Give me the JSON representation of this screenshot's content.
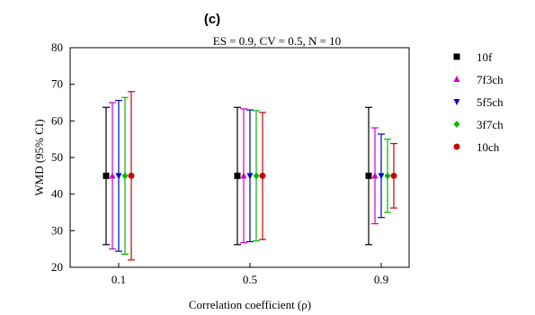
{
  "chart_data": {
    "type": "error-bar",
    "panel_label": "(c)",
    "subtitle": "ES = 0.9, CV = 0.5, N = 10",
    "xlabel": "Correlation coefficient (ρ)",
    "ylabel": "WMD (95% CI)",
    "categories": [
      "0.1",
      "0.5",
      "0.9"
    ],
    "ylim": [
      20,
      80
    ],
    "yticks": [
      20,
      30,
      40,
      50,
      60,
      70,
      80
    ],
    "grid": false,
    "legend_position": "right",
    "series": [
      {
        "name": "10f",
        "color": "#000000",
        "marker": "square",
        "points": [
          {
            "x": "0.1",
            "mean": 45.0,
            "low": 26.2,
            "high": 63.7
          },
          {
            "x": "0.5",
            "mean": 45.0,
            "low": 26.2,
            "high": 63.7
          },
          {
            "x": "0.9",
            "mean": 45.0,
            "low": 26.2,
            "high": 63.7
          }
        ]
      },
      {
        "name": "7f3ch",
        "color": "#cc00cc",
        "marker": "triangle-up",
        "points": [
          {
            "x": "0.1",
            "mean": 45.0,
            "low": 25.0,
            "high": 65.0
          },
          {
            "x": "0.5",
            "mean": 45.0,
            "low": 26.7,
            "high": 63.3
          },
          {
            "x": "0.9",
            "mean": 45.0,
            "low": 31.9,
            "high": 58.1
          }
        ]
      },
      {
        "name": "5f5ch",
        "color": "#0000cc",
        "marker": "triangle-down",
        "points": [
          {
            "x": "0.1",
            "mean": 45.0,
            "low": 24.4,
            "high": 65.6
          },
          {
            "x": "0.5",
            "mean": 45.0,
            "low": 27.0,
            "high": 63.0
          },
          {
            "x": "0.9",
            "mean": 45.0,
            "low": 33.6,
            "high": 56.4
          }
        ]
      },
      {
        "name": "3f7ch",
        "color": "#00bb00",
        "marker": "diamond",
        "points": [
          {
            "x": "0.1",
            "mean": 45.0,
            "low": 23.6,
            "high": 66.4
          },
          {
            "x": "0.5",
            "mean": 45.0,
            "low": 27.2,
            "high": 62.8
          },
          {
            "x": "0.9",
            "mean": 45.0,
            "low": 35.0,
            "high": 55.0
          }
        ]
      },
      {
        "name": "10ch",
        "color": "#cc0000",
        "marker": "circle",
        "points": [
          {
            "x": "0.1",
            "mean": 45.0,
            "low": 22.0,
            "high": 68.0
          },
          {
            "x": "0.5",
            "mean": 45.0,
            "low": 27.6,
            "high": 62.3
          },
          {
            "x": "0.9",
            "mean": 45.0,
            "low": 36.2,
            "high": 53.8
          }
        ]
      }
    ]
  }
}
